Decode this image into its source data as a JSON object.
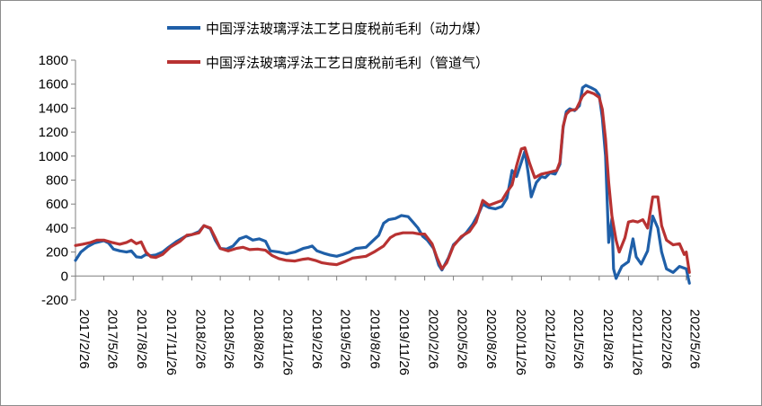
{
  "chart_data": {
    "type": "line",
    "ylim": [
      -200,
      1800
    ],
    "yticks": [
      "1800",
      "1600",
      "1400",
      "1200",
      "1000",
      "800",
      "600",
      "400",
      "200",
      "0",
      "-200"
    ],
    "xlim": [
      "2017-02-26",
      "2022-06-10"
    ],
    "xticks": [
      "2017/2/26",
      "2017/5/26",
      "2017/8/26",
      "2017/11/26",
      "2018/2/26",
      "2018/5/26",
      "2018/8/26",
      "2018/11/26",
      "2019/2/26",
      "2019/5/26",
      "2019/8/26",
      "2019/11/26",
      "2020/2/26",
      "2020/5/26",
      "2020/8/26",
      "2020/11/26",
      "2021/2/26",
      "2021/5/26",
      "2021/8/26",
      "2021/11/26",
      "2022/2/26",
      "2022/5/26"
    ],
    "legend": "top",
    "grid": false,
    "series": [
      {
        "name": "中国浮法玻璃浮法工艺日度税前毛利（动力煤）",
        "color": "#1f5fa8",
        "points": [
          [
            "2017-02-26",
            130
          ],
          [
            "2017-03-15",
            200
          ],
          [
            "2017-04-05",
            245
          ],
          [
            "2017-04-26",
            275
          ],
          [
            "2017-05-26",
            295
          ],
          [
            "2017-06-10",
            275
          ],
          [
            "2017-06-25",
            225
          ],
          [
            "2017-07-15",
            210
          ],
          [
            "2017-08-05",
            200
          ],
          [
            "2017-08-20",
            210
          ],
          [
            "2017-09-05",
            160
          ],
          [
            "2017-09-20",
            155
          ],
          [
            "2017-10-05",
            180
          ],
          [
            "2017-10-20",
            170
          ],
          [
            "2017-11-05",
            175
          ],
          [
            "2017-11-26",
            200
          ],
          [
            "2017-12-15",
            240
          ],
          [
            "2018-01-10",
            290
          ],
          [
            "2018-02-05",
            330
          ],
          [
            "2018-02-26",
            345
          ],
          [
            "2018-03-20",
            370
          ],
          [
            "2018-04-05",
            420
          ],
          [
            "2018-04-25",
            395
          ],
          [
            "2018-05-10",
            300
          ],
          [
            "2018-05-26",
            230
          ],
          [
            "2018-06-15",
            225
          ],
          [
            "2018-07-05",
            250
          ],
          [
            "2018-07-25",
            310
          ],
          [
            "2018-08-15",
            330
          ],
          [
            "2018-09-05",
            300
          ],
          [
            "2018-09-25",
            310
          ],
          [
            "2018-10-15",
            290
          ],
          [
            "2018-10-30",
            210
          ],
          [
            "2018-11-26",
            200
          ],
          [
            "2018-12-20",
            185
          ],
          [
            "2019-01-15",
            200
          ],
          [
            "2019-02-10",
            230
          ],
          [
            "2019-02-26",
            240
          ],
          [
            "2019-03-10",
            250
          ],
          [
            "2019-03-25",
            210
          ],
          [
            "2019-04-15",
            190
          ],
          [
            "2019-05-05",
            175
          ],
          [
            "2019-05-26",
            165
          ],
          [
            "2019-06-15",
            180
          ],
          [
            "2019-07-05",
            200
          ],
          [
            "2019-07-25",
            230
          ],
          [
            "2019-08-26",
            240
          ],
          [
            "2019-09-15",
            290
          ],
          [
            "2019-10-05",
            340
          ],
          [
            "2019-10-20",
            440
          ],
          [
            "2019-11-05",
            470
          ],
          [
            "2019-11-26",
            480
          ],
          [
            "2019-12-15",
            505
          ],
          [
            "2020-01-05",
            495
          ],
          [
            "2020-01-20",
            450
          ],
          [
            "2020-02-05",
            400
          ],
          [
            "2020-02-20",
            330
          ],
          [
            "2020-03-05",
            300
          ],
          [
            "2020-03-25",
            230
          ],
          [
            "2020-04-10",
            90
          ],
          [
            "2020-04-20",
            50
          ],
          [
            "2020-05-10",
            150
          ],
          [
            "2020-05-26",
            260
          ],
          [
            "2020-06-15",
            310
          ],
          [
            "2020-07-05",
            360
          ],
          [
            "2020-07-25",
            430
          ],
          [
            "2020-08-15",
            530
          ],
          [
            "2020-08-26",
            600
          ],
          [
            "2020-09-15",
            570
          ],
          [
            "2020-10-05",
            560
          ],
          [
            "2020-10-25",
            580
          ],
          [
            "2020-11-10",
            650
          ],
          [
            "2020-11-26",
            880
          ],
          [
            "2020-12-10",
            830
          ],
          [
            "2020-12-25",
            950
          ],
          [
            "2021-01-05",
            1040
          ],
          [
            "2021-01-15",
            870
          ],
          [
            "2021-01-25",
            660
          ],
          [
            "2021-02-10",
            780
          ],
          [
            "2021-02-26",
            830
          ],
          [
            "2021-03-10",
            820
          ],
          [
            "2021-03-25",
            860
          ],
          [
            "2021-04-10",
            850
          ],
          [
            "2021-04-25",
            930
          ],
          [
            "2021-05-05",
            1240
          ],
          [
            "2021-05-15",
            1370
          ],
          [
            "2021-05-26",
            1395
          ],
          [
            "2021-06-10",
            1380
          ],
          [
            "2021-06-25",
            1420
          ],
          [
            "2021-07-05",
            1570
          ],
          [
            "2021-07-15",
            1590
          ],
          [
            "2021-08-01",
            1570
          ],
          [
            "2021-08-15",
            1550
          ],
          [
            "2021-08-26",
            1510
          ],
          [
            "2021-09-05",
            1320
          ],
          [
            "2021-09-15",
            1000
          ],
          [
            "2021-09-25",
            280
          ],
          [
            "2021-10-05",
            480
          ],
          [
            "2021-10-10",
            60
          ],
          [
            "2021-10-18",
            -20
          ],
          [
            "2021-11-05",
            80
          ],
          [
            "2021-11-26",
            120
          ],
          [
            "2021-12-10",
            310
          ],
          [
            "2021-12-20",
            160
          ],
          [
            "2022-01-05",
            100
          ],
          [
            "2022-01-25",
            210
          ],
          [
            "2022-02-10",
            500
          ],
          [
            "2022-02-26",
            400
          ],
          [
            "2022-03-10",
            200
          ],
          [
            "2022-03-25",
            60
          ],
          [
            "2022-04-15",
            30
          ],
          [
            "2022-05-05",
            80
          ],
          [
            "2022-05-26",
            60
          ],
          [
            "2022-06-05",
            -60
          ]
        ]
      },
      {
        "name": "中国浮法玻璃浮法工艺日度税前毛利（管道气）",
        "color": "#b83232",
        "points": [
          [
            "2017-02-26",
            255
          ],
          [
            "2017-03-20",
            265
          ],
          [
            "2017-04-15",
            280
          ],
          [
            "2017-05-05",
            300
          ],
          [
            "2017-05-26",
            300
          ],
          [
            "2017-06-20",
            280
          ],
          [
            "2017-07-15",
            265
          ],
          [
            "2017-08-05",
            280
          ],
          [
            "2017-08-20",
            300
          ],
          [
            "2017-09-05",
            270
          ],
          [
            "2017-09-20",
            285
          ],
          [
            "2017-10-05",
            200
          ],
          [
            "2017-10-20",
            160
          ],
          [
            "2017-11-05",
            155
          ],
          [
            "2017-11-26",
            180
          ],
          [
            "2017-12-20",
            240
          ],
          [
            "2018-01-20",
            290
          ],
          [
            "2018-02-10",
            340
          ],
          [
            "2018-02-26",
            345
          ],
          [
            "2018-03-20",
            360
          ],
          [
            "2018-04-05",
            420
          ],
          [
            "2018-04-25",
            400
          ],
          [
            "2018-05-10",
            320
          ],
          [
            "2018-05-26",
            230
          ],
          [
            "2018-06-20",
            210
          ],
          [
            "2018-07-15",
            230
          ],
          [
            "2018-08-05",
            240
          ],
          [
            "2018-08-26",
            220
          ],
          [
            "2018-09-20",
            225
          ],
          [
            "2018-10-15",
            215
          ],
          [
            "2018-11-05",
            170
          ],
          [
            "2018-11-26",
            145
          ],
          [
            "2018-12-20",
            130
          ],
          [
            "2019-01-15",
            125
          ],
          [
            "2019-02-10",
            140
          ],
          [
            "2019-02-26",
            145
          ],
          [
            "2019-03-20",
            130
          ],
          [
            "2019-04-10",
            110
          ],
          [
            "2019-05-05",
            100
          ],
          [
            "2019-05-26",
            95
          ],
          [
            "2019-06-20",
            120
          ],
          [
            "2019-07-15",
            150
          ],
          [
            "2019-08-26",
            165
          ],
          [
            "2019-09-20",
            200
          ],
          [
            "2019-10-20",
            250
          ],
          [
            "2019-11-10",
            320
          ],
          [
            "2019-11-26",
            345
          ],
          [
            "2019-12-20",
            360
          ],
          [
            "2020-01-20",
            360
          ],
          [
            "2020-02-10",
            350
          ],
          [
            "2020-02-26",
            350
          ],
          [
            "2020-03-20",
            270
          ],
          [
            "2020-04-05",
            150
          ],
          [
            "2020-04-20",
            60
          ],
          [
            "2020-05-05",
            110
          ],
          [
            "2020-05-26",
            250
          ],
          [
            "2020-06-20",
            330
          ],
          [
            "2020-07-15",
            370
          ],
          [
            "2020-08-05",
            450
          ],
          [
            "2020-08-26",
            630
          ],
          [
            "2020-09-15",
            590
          ],
          [
            "2020-10-05",
            610
          ],
          [
            "2020-10-25",
            630
          ],
          [
            "2020-11-10",
            700
          ],
          [
            "2020-11-26",
            760
          ],
          [
            "2020-12-10",
            920
          ],
          [
            "2020-12-25",
            1060
          ],
          [
            "2021-01-05",
            1070
          ],
          [
            "2021-01-20",
            940
          ],
          [
            "2021-02-05",
            820
          ],
          [
            "2021-02-26",
            850
          ],
          [
            "2021-03-15",
            860
          ],
          [
            "2021-03-30",
            870
          ],
          [
            "2021-04-15",
            880
          ],
          [
            "2021-04-25",
            950
          ],
          [
            "2021-05-05",
            1250
          ],
          [
            "2021-05-15",
            1350
          ],
          [
            "2021-05-26",
            1380
          ],
          [
            "2021-06-15",
            1390
          ],
          [
            "2021-07-05",
            1500
          ],
          [
            "2021-07-20",
            1540
          ],
          [
            "2021-08-10",
            1520
          ],
          [
            "2021-08-26",
            1490
          ],
          [
            "2021-09-05",
            1390
          ],
          [
            "2021-09-15",
            1140
          ],
          [
            "2021-09-25",
            780
          ],
          [
            "2021-10-05",
            500
          ],
          [
            "2021-10-18",
            300
          ],
          [
            "2021-10-28",
            200
          ],
          [
            "2021-11-15",
            320
          ],
          [
            "2021-11-26",
            450
          ],
          [
            "2021-12-10",
            460
          ],
          [
            "2021-12-25",
            450
          ],
          [
            "2022-01-10",
            470
          ],
          [
            "2022-01-25",
            400
          ],
          [
            "2022-02-10",
            660
          ],
          [
            "2022-02-26",
            660
          ],
          [
            "2022-03-10",
            420
          ],
          [
            "2022-03-25",
            300
          ],
          [
            "2022-04-15",
            260
          ],
          [
            "2022-05-05",
            270
          ],
          [
            "2022-05-20",
            180
          ],
          [
            "2022-05-26",
            200
          ],
          [
            "2022-06-05",
            30
          ]
        ]
      }
    ]
  }
}
